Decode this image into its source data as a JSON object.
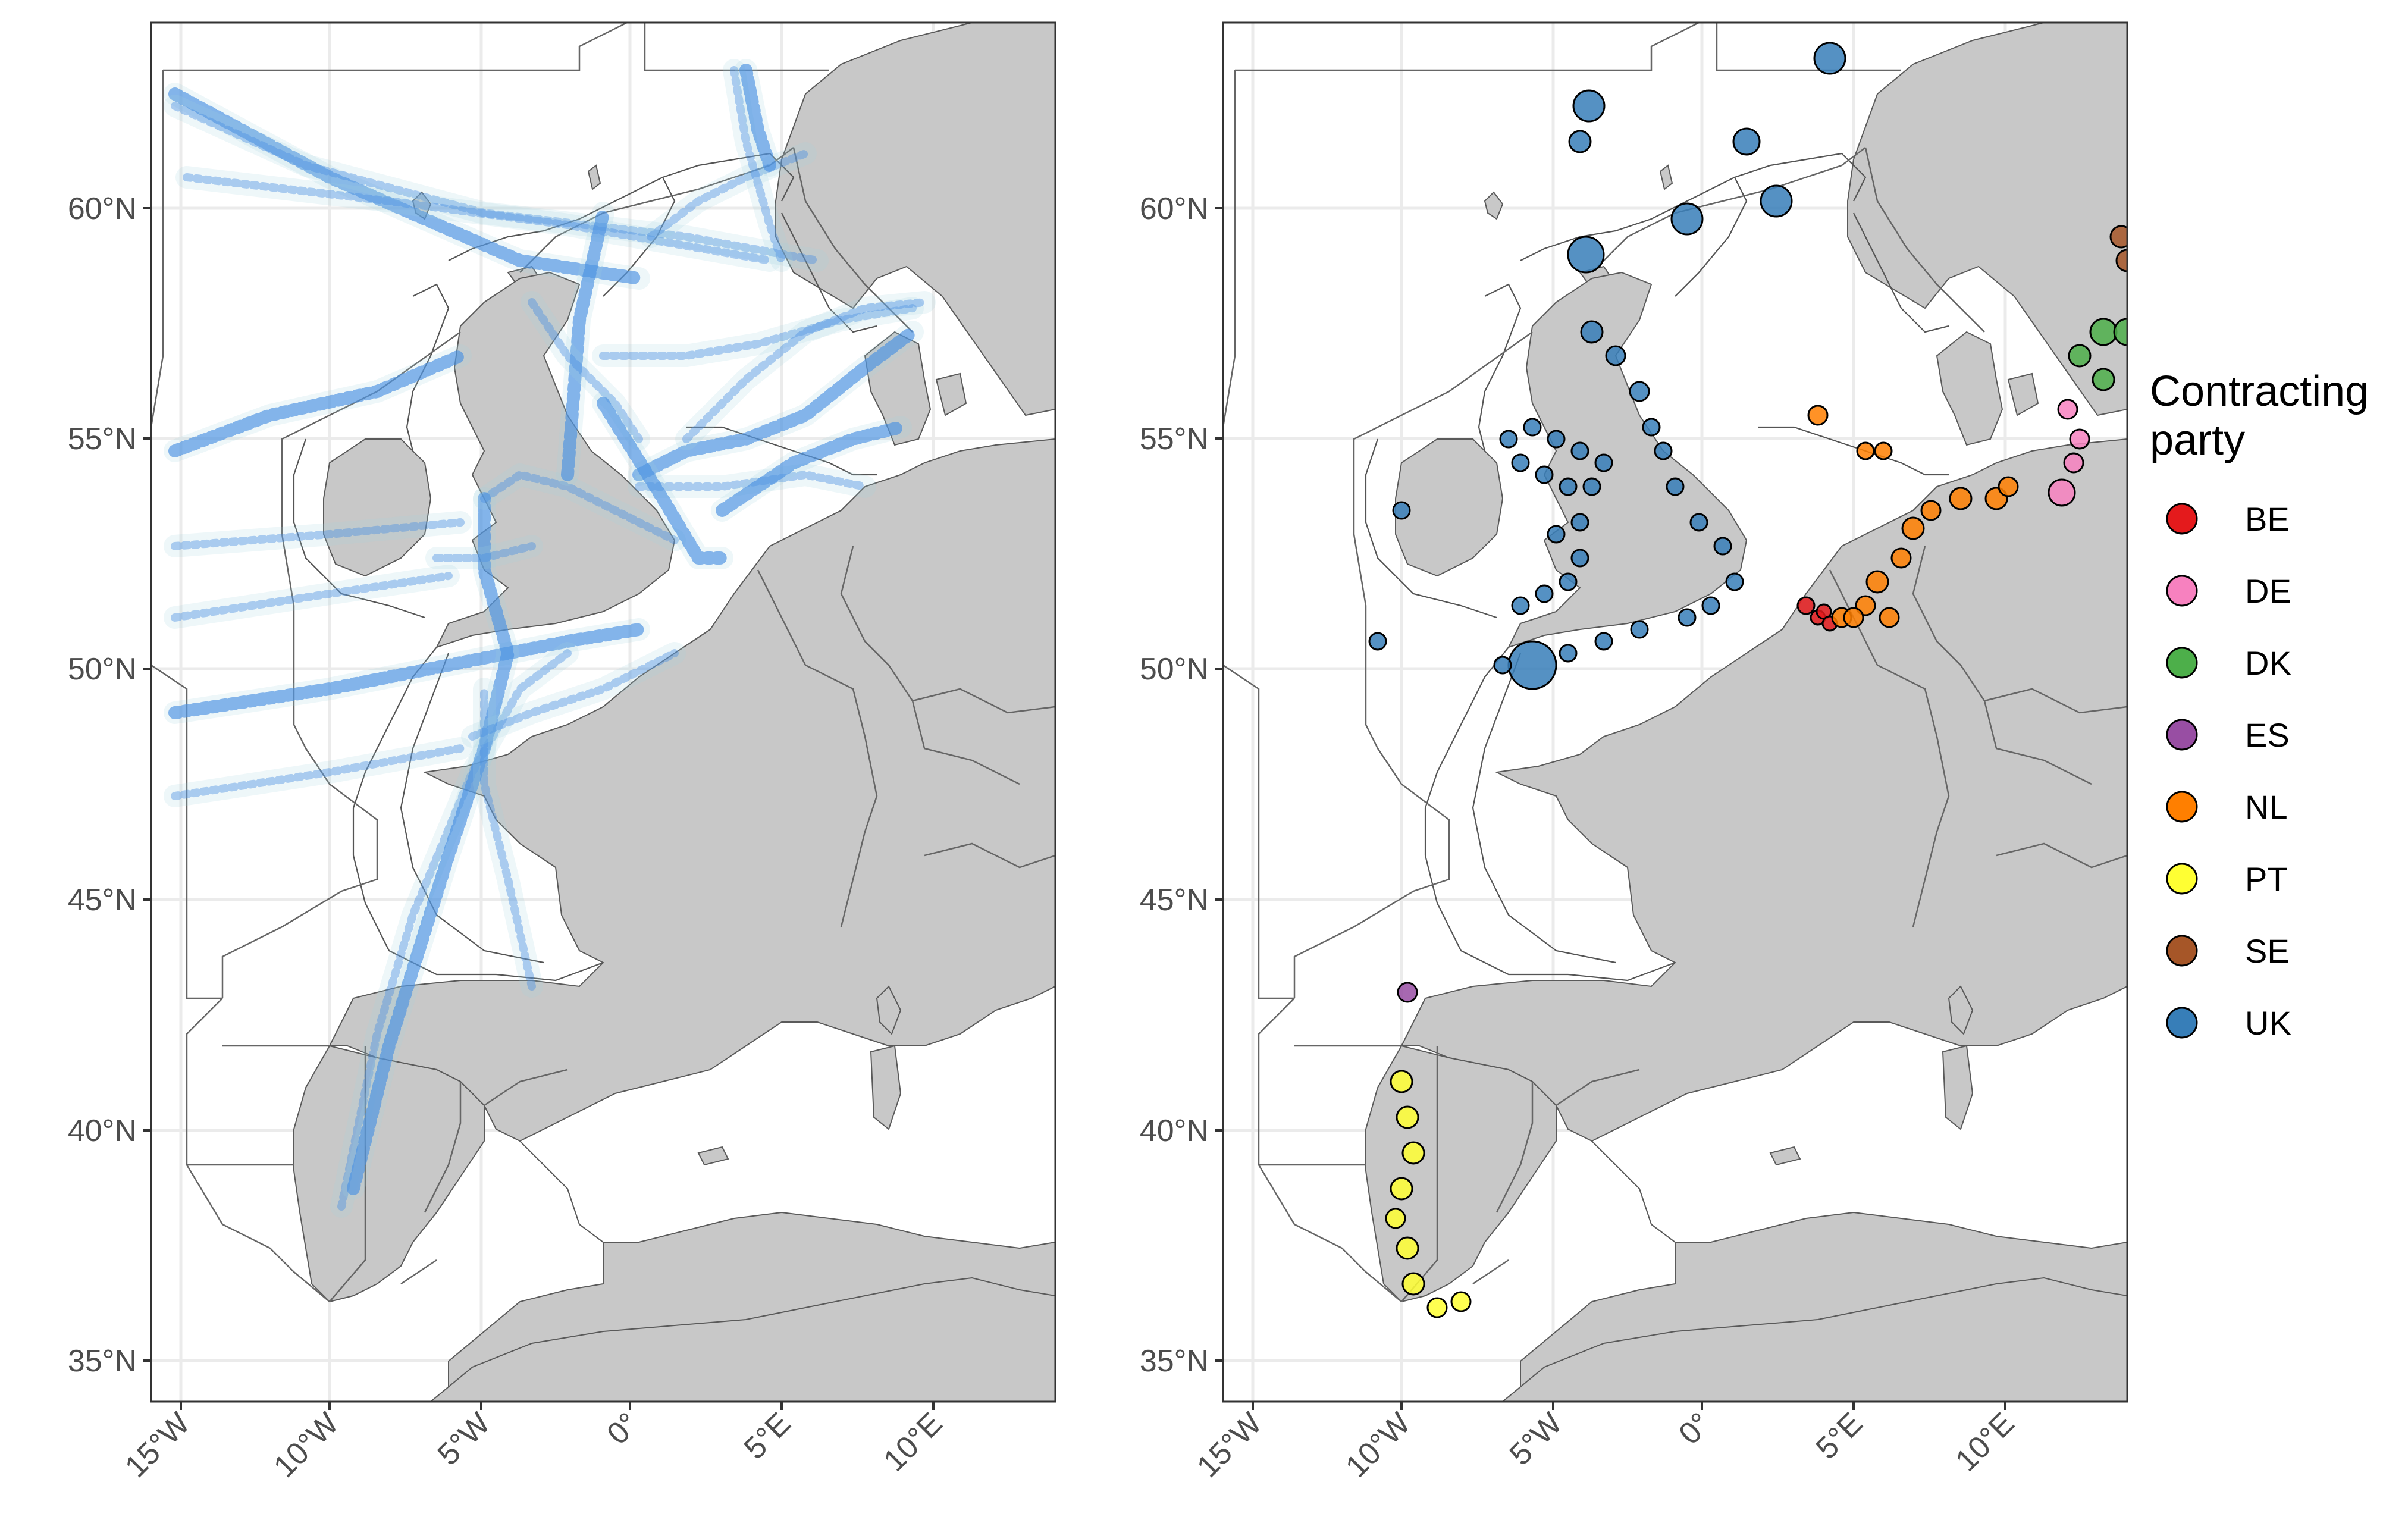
{
  "figure": {
    "panels": [
      {
        "id": "left",
        "y_ticks": [
          "35°N",
          "40°N",
          "45°N",
          "50°N",
          "55°N",
          "60°N"
        ],
        "x_ticks": [
          "15°W",
          "10°W",
          "5°W",
          "0°",
          "5°E",
          "10°E"
        ]
      },
      {
        "id": "right",
        "y_ticks": [
          "35°N",
          "40°N",
          "45°N",
          "50°N",
          "55°N",
          "60°N"
        ],
        "x_ticks": [
          "15°W",
          "10°W",
          "5°W",
          "0°",
          "5°E",
          "10°E"
        ]
      }
    ],
    "legend": {
      "title_line1": "Contracting",
      "title_line2": "party",
      "items": [
        {
          "label": "BE",
          "color": "#e41a1c"
        },
        {
          "label": "DE",
          "color": "#f781bf"
        },
        {
          "label": "DK",
          "color": "#4daf4a"
        },
        {
          "label": "ES",
          "color": "#984ea3"
        },
        {
          "label": "NL",
          "color": "#ff7f00"
        },
        {
          "label": "PT",
          "color": "#ffff33"
        },
        {
          "label": "SE",
          "color": "#a65628"
        },
        {
          "label": "UK",
          "color": "#377eb8"
        }
      ]
    },
    "colors": {
      "land": "#c8c8c8",
      "track": "#4a90e2",
      "track_faint": "#9fd3e0"
    }
  }
}
